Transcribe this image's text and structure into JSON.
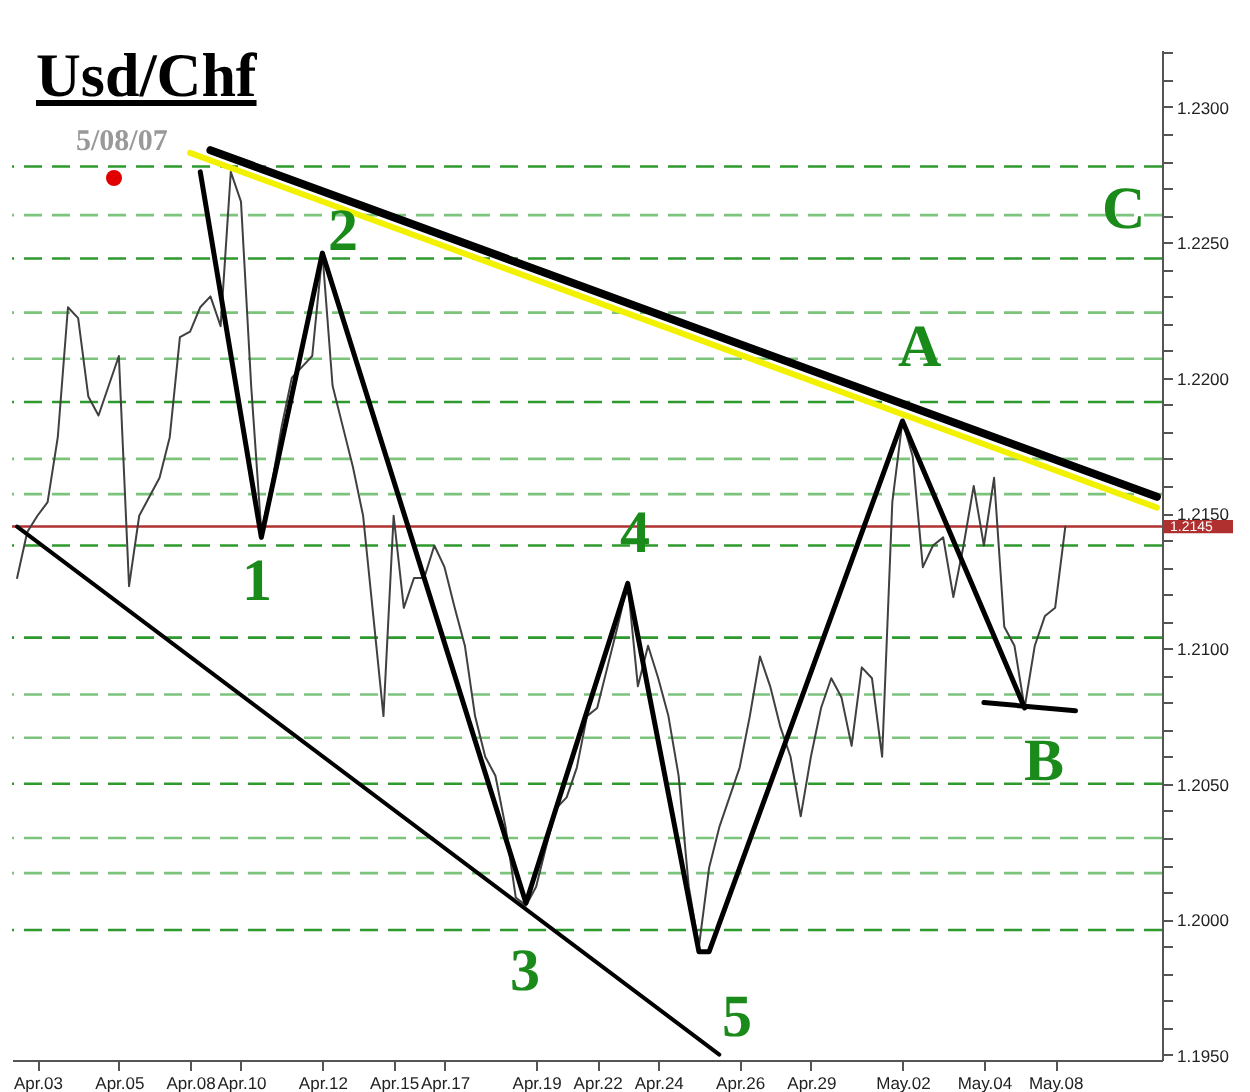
{
  "chart_data": {
    "type": "line",
    "title": "Usd/Chf",
    "categories": [
      null,
      null,
      "Apr.03",
      null,
      null,
      null,
      null,
      null,
      null,
      null,
      "Apr.05",
      null,
      null,
      null,
      null,
      null,
      null,
      "Apr.08",
      null,
      null,
      null,
      null,
      "Apr.10",
      null,
      null,
      null,
      null,
      null,
      null,
      null,
      "Apr.12",
      null,
      null,
      null,
      null,
      null,
      null,
      "Apr.15",
      null,
      null,
      null,
      null,
      "Apr.17",
      null,
      null,
      null,
      null,
      null,
      null,
      null,
      null,
      "Apr.19",
      null,
      null,
      null,
      null,
      null,
      "Apr.22",
      null,
      null,
      null,
      null,
      null,
      "Apr.24",
      null,
      null,
      null,
      null,
      null,
      null,
      null,
      "Apr.26",
      null,
      null,
      null,
      null,
      null,
      null,
      "Apr.29",
      null,
      null,
      null,
      null,
      null,
      null,
      null,
      null,
      "May.02",
      null,
      null,
      null,
      null,
      null,
      null,
      null,
      "May.04",
      null,
      null,
      null,
      null,
      null,
      null,
      "May.08",
      null,
      null,
      null,
      null,
      null,
      null,
      null,
      null,
      null,
      null
    ],
    "ylim": [
      1.1948,
      1.2321
    ],
    "yticks": [
      {
        "value": 1.195,
        "label": "1.1950"
      },
      {
        "value": 1.196,
        "label": null
      },
      {
        "value": 1.197,
        "label": null
      },
      {
        "value": 1.198,
        "label": null
      },
      {
        "value": 1.199,
        "label": null
      },
      {
        "value": 1.2,
        "label": "1.2000"
      },
      {
        "value": 1.201,
        "label": null
      },
      {
        "value": 1.202,
        "label": null
      },
      {
        "value": 1.203,
        "label": null
      },
      {
        "value": 1.204,
        "label": null
      },
      {
        "value": 1.205,
        "label": "1.2050"
      },
      {
        "value": 1.206,
        "label": null
      },
      {
        "value": 1.207,
        "label": null
      },
      {
        "value": 1.208,
        "label": null
      },
      {
        "value": 1.209,
        "label": null
      },
      {
        "value": 1.21,
        "label": "1.2100"
      },
      {
        "value": 1.211,
        "label": null
      },
      {
        "value": 1.212,
        "label": null
      },
      {
        "value": 1.213,
        "label": null
      },
      {
        "value": 1.214,
        "label": null
      },
      {
        "value": 1.215,
        "label": "1.2150"
      },
      {
        "value": 1.216,
        "label": null
      },
      {
        "value": 1.217,
        "label": null
      },
      {
        "value": 1.218,
        "label": null
      },
      {
        "value": 1.219,
        "label": null
      },
      {
        "value": 1.22,
        "label": "1.2200"
      },
      {
        "value": 1.221,
        "label": null
      },
      {
        "value": 1.222,
        "label": null
      },
      {
        "value": 1.223,
        "label": null
      },
      {
        "value": 1.224,
        "label": null
      },
      {
        "value": 1.225,
        "label": "1.2250"
      },
      {
        "value": 1.226,
        "label": null
      },
      {
        "value": 1.227,
        "label": null
      },
      {
        "value": 1.228,
        "label": null
      },
      {
        "value": 1.229,
        "label": null
      },
      {
        "value": 1.23,
        "label": "1.2300"
      },
      {
        "value": 1.231,
        "label": null
      },
      {
        "value": 1.232,
        "label": null
      }
    ],
    "series": [
      {
        "color": "#404040",
        "values": [
          1.2126,
          1.2143,
          1.2149,
          1.2154,
          1.2178,
          1.2226,
          1.2222,
          1.2193,
          1.2186,
          1.2197,
          1.2208,
          1.2123,
          1.2149,
          1.2156,
          1.2163,
          1.2178,
          1.2215,
          1.2217,
          1.2226,
          1.223,
          1.2219,
          1.2276,
          1.2265,
          1.2197,
          1.2143,
          1.216,
          1.2182,
          1.22,
          1.2204,
          1.2208,
          1.2246,
          1.2197,
          1.2182,
          1.2167,
          1.2149,
          1.2112,
          1.2075,
          1.2149,
          1.2115,
          1.2126,
          1.2126,
          1.2138,
          1.213,
          1.2115,
          1.2101,
          1.2075,
          1.206,
          1.2053,
          1.2034,
          1.2008,
          1.2005,
          1.2012,
          1.2027,
          1.2041,
          1.2045,
          1.2056,
          1.2075,
          1.2078,
          1.2093,
          1.2108,
          1.2124,
          1.2086,
          1.2101,
          1.2089,
          1.2075,
          1.2053,
          1.2012,
          1.199,
          1.2019,
          1.2034,
          1.2045,
          1.2056,
          1.2075,
          1.2097,
          1.2086,
          1.2071,
          1.206,
          1.2038,
          1.206,
          1.2078,
          1.2089,
          1.2082,
          1.2064,
          1.2093,
          1.2089,
          1.206,
          1.2154,
          1.2184,
          1.2171,
          1.213,
          1.2138,
          1.2141,
          1.2119,
          1.2138,
          1.216,
          1.2138,
          1.2163,
          1.2108,
          1.2101,
          1.2078,
          1.2101,
          1.2112,
          1.2115,
          1.2145,
          null,
          null,
          null,
          null,
          null,
          null,
          null,
          null,
          null
        ]
      },
      {
        "color": "#f2f200",
        "values": [
          null,
          null,
          null,
          null,
          null,
          null,
          null,
          null,
          null,
          null,
          null,
          null,
          null,
          null,
          null,
          null,
          null,
          1.2283,
          null,
          null,
          null,
          null,
          null,
          null,
          null,
          null,
          null,
          null,
          null,
          null,
          null,
          null,
          null,
          null,
          null,
          null,
          null,
          null,
          null,
          null,
          null,
          null,
          null,
          null,
          null,
          null,
          null,
          null,
          null,
          null,
          null,
          null,
          null,
          null,
          null,
          null,
          null,
          null,
          null,
          null,
          null,
          null,
          null,
          null,
          null,
          null,
          null,
          null,
          null,
          null,
          null,
          null,
          null,
          null,
          null,
          null,
          null,
          null,
          null,
          null,
          null,
          null,
          null,
          null,
          null,
          null,
          null,
          null,
          null,
          null,
          null,
          null,
          null,
          null,
          null,
          null,
          null,
          null,
          null,
          null,
          null,
          null,
          null,
          null,
          null,
          null,
          null,
          null,
          null,
          null,
          null,
          null,
          1.2152
        ]
      },
      {
        "color": "#000000",
        "values": [
          null,
          null,
          null,
          null,
          null,
          null,
          null,
          null,
          null,
          null,
          null,
          null,
          null,
          null,
          null,
          null,
          null,
          null,
          null,
          1.2284,
          null,
          null,
          null,
          null,
          null,
          null,
          null,
          null,
          null,
          null,
          null,
          null,
          null,
          null,
          null,
          null,
          null,
          null,
          null,
          null,
          null,
          null,
          null,
          null,
          null,
          null,
          null,
          null,
          null,
          null,
          null,
          null,
          null,
          null,
          null,
          null,
          null,
          null,
          null,
          null,
          null,
          null,
          null,
          null,
          null,
          null,
          null,
          null,
          null,
          null,
          null,
          null,
          null,
          null,
          null,
          null,
          null,
          null,
          null,
          null,
          null,
          null,
          null,
          null,
          null,
          null,
          null,
          null,
          null,
          null,
          null,
          null,
          null,
          null,
          null,
          null,
          null,
          null,
          null,
          null,
          null,
          null,
          null,
          null,
          null,
          null,
          null,
          null,
          null,
          null,
          null,
          null,
          1.2156
        ]
      },
      {
        "color": "#000000",
        "values": [
          1.2145,
          null,
          null,
          null,
          null,
          null,
          null,
          null,
          null,
          null,
          null,
          null,
          null,
          null,
          null,
          null,
          null,
          null,
          null,
          null,
          null,
          null,
          null,
          null,
          null,
          null,
          null,
          null,
          null,
          null,
          null,
          null,
          null,
          null,
          null,
          null,
          null,
          null,
          null,
          null,
          null,
          null,
          null,
          null,
          null,
          null,
          null,
          null,
          null,
          null,
          null,
          null,
          null,
          null,
          null,
          null,
          null,
          null,
          null,
          null,
          null,
          null,
          null,
          null,
          null,
          null,
          null,
          null,
          null,
          1.195,
          null,
          null,
          null,
          null,
          null,
          null,
          null,
          null,
          null,
          null,
          null,
          null,
          null,
          null,
          null,
          null,
          null,
          null,
          null,
          null,
          null,
          null,
          null,
          null,
          null,
          null,
          null,
          null,
          null,
          null,
          null,
          null,
          null,
          null,
          null,
          null,
          null,
          null,
          null,
          null,
          null,
          null,
          null
        ]
      },
      {
        "color": "#000000",
        "values": [
          null,
          null,
          null,
          null,
          null,
          null,
          null,
          null,
          null,
          null,
          null,
          null,
          null,
          null,
          null,
          null,
          null,
          null,
          1.2276,
          null,
          null,
          null,
          null,
          null,
          1.2141,
          null,
          null,
          null,
          null,
          null,
          1.2246,
          null,
          null,
          null,
          null,
          null,
          null,
          null,
          null,
          null,
          null,
          null,
          null,
          null,
          null,
          null,
          null,
          null,
          null,
          null,
          1.2006,
          null,
          null,
          null,
          null,
          null,
          null,
          null,
          null,
          null,
          1.2124,
          null,
          null,
          null,
          null,
          null,
          null,
          1.1988,
          1.1988,
          null,
          null,
          null,
          null,
          null,
          null,
          null,
          null,
          null,
          null,
          null,
          null,
          null,
          null,
          null,
          null,
          null,
          null,
          1.2184,
          null,
          null,
          null,
          null,
          null,
          null,
          null,
          null,
          null,
          null,
          null,
          1.2078,
          null,
          null,
          null,
          null,
          null,
          null,
          null,
          null,
          null,
          null,
          null,
          null,
          null
        ]
      },
      {
        "color": "#000000",
        "values": [
          null,
          null,
          null,
          null,
          null,
          null,
          null,
          null,
          null,
          null,
          null,
          null,
          null,
          null,
          null,
          null,
          null,
          null,
          null,
          null,
          null,
          null,
          null,
          null,
          null,
          null,
          null,
          null,
          null,
          null,
          null,
          null,
          null,
          null,
          null,
          null,
          null,
          null,
          null,
          null,
          null,
          null,
          null,
          null,
          null,
          null,
          null,
          null,
          null,
          null,
          null,
          null,
          null,
          null,
          null,
          null,
          null,
          null,
          null,
          null,
          null,
          null,
          null,
          null,
          null,
          null,
          null,
          null,
          null,
          null,
          null,
          null,
          null,
          null,
          null,
          null,
          null,
          null,
          null,
          null,
          null,
          null,
          null,
          null,
          null,
          null,
          null,
          null,
          null,
          null,
          null,
          null,
          null,
          null,
          null,
          1.208,
          null,
          null,
          null,
          null,
          null,
          null,
          null,
          null,
          1.2077,
          null,
          null,
          null,
          null,
          null,
          null,
          null,
          null
        ]
      }
    ],
    "ref_lines": [
      {
        "axis": "y",
        "value": 1.2278,
        "color": "#2e9a2e",
        "line_style": "dashed"
      },
      {
        "axis": "y",
        "value": 1.226,
        "color": "#7cc47c",
        "line_style": "dashed"
      },
      {
        "axis": "y",
        "value": 1.2244,
        "color": "#2e9a2e",
        "line_style": "dashed"
      },
      {
        "axis": "y",
        "value": 1.2224,
        "color": "#7cc47c",
        "line_style": "dashed"
      },
      {
        "axis": "y",
        "value": 1.2207,
        "color": "#7cc47c",
        "line_style": "dashed"
      },
      {
        "axis": "y",
        "value": 1.2191,
        "color": "#2e9a2e",
        "line_style": "dashed"
      },
      {
        "axis": "y",
        "value": 1.217,
        "color": "#7cc47c",
        "line_style": "dashed"
      },
      {
        "axis": "y",
        "value": 1.2157,
        "color": "#7cc47c",
        "line_style": "dashed"
      },
      {
        "axis": "y",
        "value": 1.2138,
        "color": "#2e9a2e",
        "line_style": "dashed"
      },
      {
        "axis": "y",
        "value": 1.2104,
        "color": "#2e9a2e",
        "line_style": "dashed"
      },
      {
        "axis": "y",
        "value": 1.2083,
        "color": "#7cc47c",
        "line_style": "dashed"
      },
      {
        "axis": "y",
        "value": 1.2067,
        "color": "#7cc47c",
        "line_style": "dashed"
      },
      {
        "axis": "y",
        "value": 1.205,
        "color": "#2e9a2e",
        "line_style": "dashed"
      },
      {
        "axis": "y",
        "value": 1.203,
        "color": "#7cc47c",
        "line_style": "dashed"
      },
      {
        "axis": "y",
        "value": 1.2017,
        "color": "#7cc47c",
        "line_style": "dashed"
      },
      {
        "axis": "y",
        "value": 1.1996,
        "color": "#2e9a2e",
        "line_style": "dashed"
      },
      {
        "axis": "y",
        "value": 1.2145,
        "label": "1.2145",
        "color": "#b03030",
        "line_style": "solid"
      }
    ],
    "annotations": [
      "5/08/07",
      "1",
      "2",
      "3",
      "4",
      "5",
      "A",
      "B",
      "C"
    ]
  }
}
